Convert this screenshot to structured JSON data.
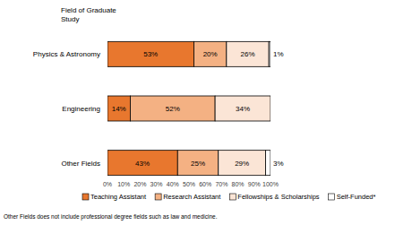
{
  "chart_data": {
    "type": "bar",
    "orientation": "horizontal",
    "stacked": true,
    "data_labels": true,
    "grid": false,
    "legend": "bottom",
    "y_label": "Field of Graduate Study",
    "categories": [
      "Physics & Astronomy",
      "Engineering",
      "Other Fields"
    ],
    "series": [
      {
        "name": "Teaching Assistant",
        "color": "#e8772e",
        "values": [
          53,
          14,
          43
        ],
        "value_labels": [
          "53%",
          "14%",
          "43%"
        ]
      },
      {
        "name": "Research Assistant",
        "color": "#f4b183",
        "values": [
          20,
          52,
          25
        ],
        "value_labels": [
          "20%",
          "52%",
          "25%"
        ]
      },
      {
        "name": "Fellowships & Scholarships",
        "color": "#fbe5d6",
        "values": [
          26,
          34,
          29
        ],
        "value_labels": [
          "26%",
          "34%",
          "29%"
        ]
      },
      {
        "name": "Self-Funded*",
        "color": "#ffffff",
        "values": [
          1,
          0,
          3
        ],
        "value_labels": [
          "1%",
          null,
          "3%"
        ]
      }
    ],
    "xlim": [
      0,
      100
    ],
    "xticks": [
      {
        "value": 0,
        "label": "0%"
      },
      {
        "value": 10,
        "label": "10%"
      },
      {
        "value": 20,
        "label": "20%"
      },
      {
        "value": 30,
        "label": "30%"
      },
      {
        "value": 40,
        "label": "40%"
      },
      {
        "value": 50,
        "label": "50%"
      },
      {
        "value": 60,
        "label": "60%"
      },
      {
        "value": 70,
        "label": "70%"
      },
      {
        "value": 80,
        "label": "80%"
      },
      {
        "value": 90,
        "label": "90%"
      },
      {
        "value": 100,
        "label": "100%"
      }
    ],
    "annotations": [
      "Other Fields does not include professional degree fields such as law and medicine."
    ]
  }
}
